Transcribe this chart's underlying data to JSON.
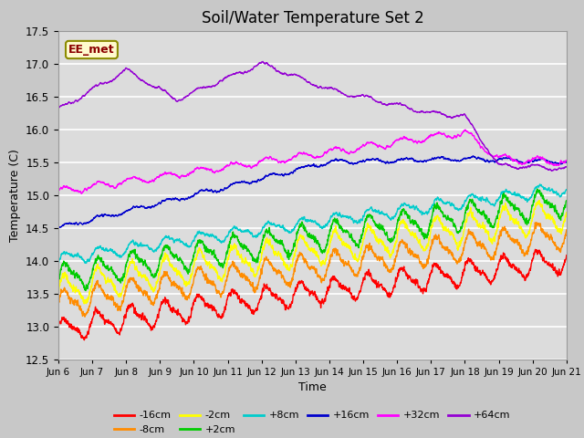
{
  "title": "Soil/Water Temperature Set 2",
  "xlabel": "Time",
  "ylabel": "Temperature (C)",
  "ylim": [
    12.5,
    17.5
  ],
  "x_tick_labels": [
    "Jun 6",
    "Jun 7",
    "Jun 8",
    "Jun 9",
    "Jun 10",
    "Jun 11",
    "Jun 12",
    "Jun 13",
    "Jun 14",
    "Jun 15",
    "Jun 16",
    "Jun 17",
    "Jun 18",
    "Jun 19",
    "Jun 20",
    "Jun 21"
  ],
  "annotation_text": "EE_met",
  "annotation_color": "#8B0000",
  "annotation_bg": "#FFFACD",
  "annotation_border": "#8B8B00",
  "legend": [
    "-16cm",
    "-8cm",
    "-2cm",
    "+2cm",
    "+8cm",
    "+16cm",
    "+32cm",
    "+64cm"
  ],
  "colors": [
    "#FF0000",
    "#FF8C00",
    "#FFFF00",
    "#00CC00",
    "#00CCCC",
    "#0000CC",
    "#FF00FF",
    "#9400D3"
  ],
  "background_color": "#DCDCDC",
  "grid_color": "#FFFFFF",
  "title_fontsize": 12,
  "n_points": 2880
}
